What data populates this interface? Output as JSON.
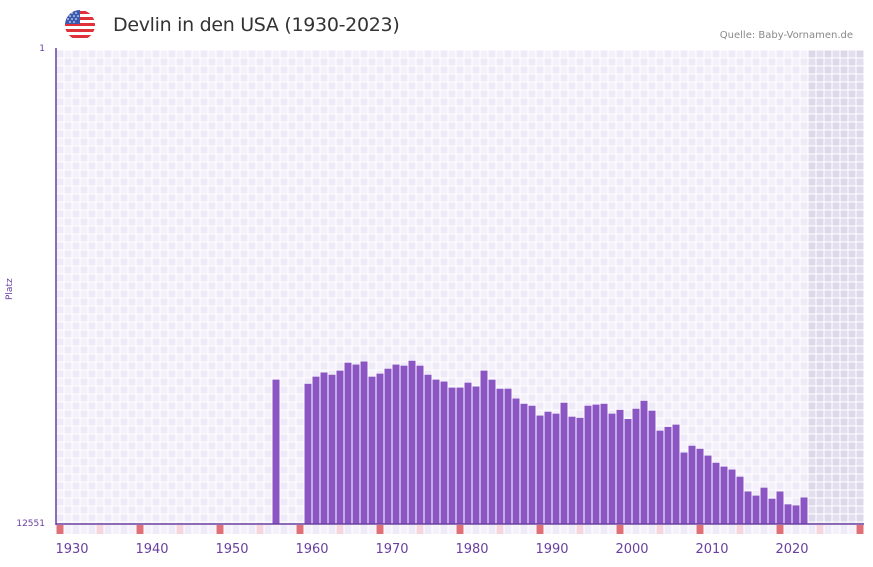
{
  "header": {
    "title": "Devlin in den USA (1930-2023)",
    "source": "Quelle: Baby-Vornamen.de",
    "flag_icon": "us-flag-icon"
  },
  "axes": {
    "ylabel": "Platz",
    "y_top_label": "1",
    "y_bottom_label": "12551",
    "x_labels": [
      "1930",
      "1940",
      "1950",
      "1960",
      "1970",
      "1980",
      "1990",
      "2000",
      "2010",
      "2020"
    ]
  },
  "colors": {
    "bar": "#8b56c4",
    "axis": "#6a3fa0",
    "grid_cell_a": "#efeaf8",
    "grid_cell_b": "#f4f1fb",
    "shade": "#e3dfee",
    "marker_red": "#e07078",
    "marker_pink": "#f5d6de"
  },
  "chart_data": {
    "type": "bar",
    "title": "Devlin in den USA (1930-2023)",
    "xlabel": "",
    "ylabel": "Platz",
    "y_inverted": true,
    "ylim": [
      12551,
      1
    ],
    "xlim": [
      1928,
      2028
    ],
    "grid": true,
    "source": "Quelle: Baby-Vornamen.de",
    "x": [
      1955,
      1959,
      1960,
      1961,
      1962,
      1963,
      1964,
      1965,
      1966,
      1967,
      1968,
      1969,
      1970,
      1971,
      1972,
      1973,
      1974,
      1975,
      1976,
      1977,
      1978,
      1979,
      1980,
      1981,
      1982,
      1983,
      1984,
      1985,
      1986,
      1987,
      1988,
      1989,
      1990,
      1991,
      1992,
      1993,
      1994,
      1995,
      1996,
      1997,
      1998,
      1999,
      2000,
      2001,
      2002,
      2003,
      2004,
      2005,
      2006,
      2007,
      2008,
      2009,
      2010,
      2011,
      2012,
      2013,
      2014,
      2015,
      2016,
      2017,
      2018,
      2019,
      2020,
      2021
    ],
    "values": [
      8730,
      8840,
      8650,
      8540,
      8600,
      8490,
      8280,
      8330,
      8250,
      8650,
      8570,
      8440,
      8330,
      8360,
      8230,
      8360,
      8600,
      8730,
      8780,
      8940,
      8940,
      8810,
      8910,
      8490,
      8730,
      8970,
      8970,
      9230,
      9370,
      9420,
      9680,
      9580,
      9630,
      9340,
      9710,
      9740,
      9420,
      9390,
      9370,
      9630,
      9530,
      9770,
      9500,
      9290,
      9550,
      10080,
      9980,
      9920,
      10660,
      10480,
      10560,
      10740,
      10930,
      11030,
      11110,
      11300,
      11690,
      11800,
      11590,
      11880,
      11690,
      12030,
      12060,
      11850
    ]
  }
}
